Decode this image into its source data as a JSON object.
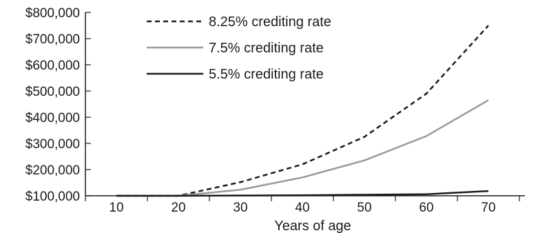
{
  "chart_data": {
    "type": "line",
    "title": "",
    "xlabel": "Years of age",
    "ylabel": "",
    "x": [
      10,
      20,
      30,
      40,
      50,
      60,
      70
    ],
    "xticks": [
      "10",
      "20",
      "30",
      "40",
      "50",
      "60",
      "70"
    ],
    "xlim": [
      5,
      75
    ],
    "ylim": [
      100000,
      800000
    ],
    "yticks": [
      "$100,000",
      "$200,000",
      "$300,000",
      "$400,000",
      "$500,000",
      "$600,000",
      "$700,000",
      "$800,000"
    ],
    "grid": false,
    "legend_position": "top-left",
    "series": [
      {
        "name": "8.25% crediting rate",
        "style": "dashed",
        "color": "#1a1a1a",
        "values": [
          100000,
          100000,
          152000,
          220000,
          325000,
          490000,
          750000
        ]
      },
      {
        "name": "7.5% crediting rate",
        "style": "solid",
        "color": "#999999",
        "values": [
          100000,
          100000,
          123000,
          170000,
          235000,
          328000,
          465000
        ]
      },
      {
        "name": "5.5% crediting rate",
        "style": "solid",
        "color": "#1a1a1a",
        "values": [
          100000,
          100000,
          101000,
          102000,
          104000,
          106000,
          118000
        ]
      }
    ]
  }
}
